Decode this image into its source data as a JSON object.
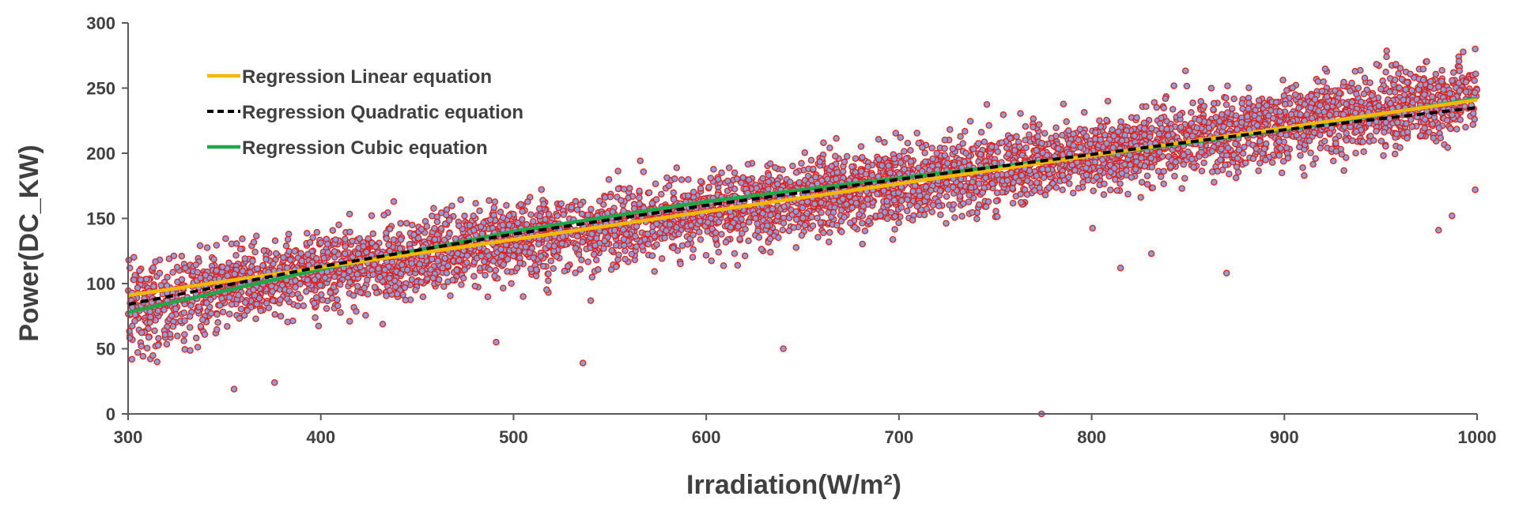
{
  "chart_data": {
    "type": "scatter",
    "title": "",
    "xlabel": "Irradiation(W/m²)",
    "ylabel": "Power(DC_KW)",
    "xlim": [
      300,
      1000
    ],
    "ylim": [
      0,
      300
    ],
    "x_ticks": [
      300,
      400,
      500,
      600,
      700,
      800,
      900,
      1000
    ],
    "y_ticks": [
      0,
      50,
      100,
      150,
      200,
      250,
      300
    ],
    "grid": false,
    "legend_position": "top-left",
    "scatter_style": {
      "fill": "#8aa0d8",
      "stroke": "#e0201c"
    },
    "scatter_trend": {
      "slope": 0.223,
      "intercept": 20.5,
      "spread": 14
    },
    "outliers": [
      {
        "x": 355,
        "y": 19
      },
      {
        "x": 376,
        "y": 24
      },
      {
        "x": 491,
        "y": 55
      },
      {
        "x": 536,
        "y": 39
      },
      {
        "x": 640,
        "y": 50
      },
      {
        "x": 774,
        "y": 0
      },
      {
        "x": 815,
        "y": 112
      },
      {
        "x": 831,
        "y": 123
      },
      {
        "x": 870,
        "y": 108
      },
      {
        "x": 980,
        "y": 141
      },
      {
        "x": 987,
        "y": 152
      },
      {
        "x": 999,
        "y": 172
      },
      {
        "x": 505,
        "y": 90
      },
      {
        "x": 953,
        "y": 274
      },
      {
        "x": 999,
        "y": 280
      }
    ],
    "series": [
      {
        "name": "Regression Linear equation",
        "style": "solid",
        "color": "#f5b800",
        "x": [
          300,
          1000
        ],
        "y": [
          91,
          241
        ]
      },
      {
        "name": "Regression Quadratic equation",
        "style": "dashed",
        "color": "#000000",
        "x": [
          300,
          400,
          500,
          600,
          700,
          800,
          900,
          1000
        ],
        "y": [
          84,
          113,
          138,
          160,
          180,
          199,
          218,
          235
        ]
      },
      {
        "name": "Regression Cubic equation",
        "style": "solid",
        "color": "#1fa84a",
        "x": [
          300,
          400,
          500,
          600,
          700,
          800,
          900,
          1000
        ],
        "y": [
          78,
          111,
          140,
          163,
          181,
          198,
          218,
          242
        ]
      }
    ]
  }
}
